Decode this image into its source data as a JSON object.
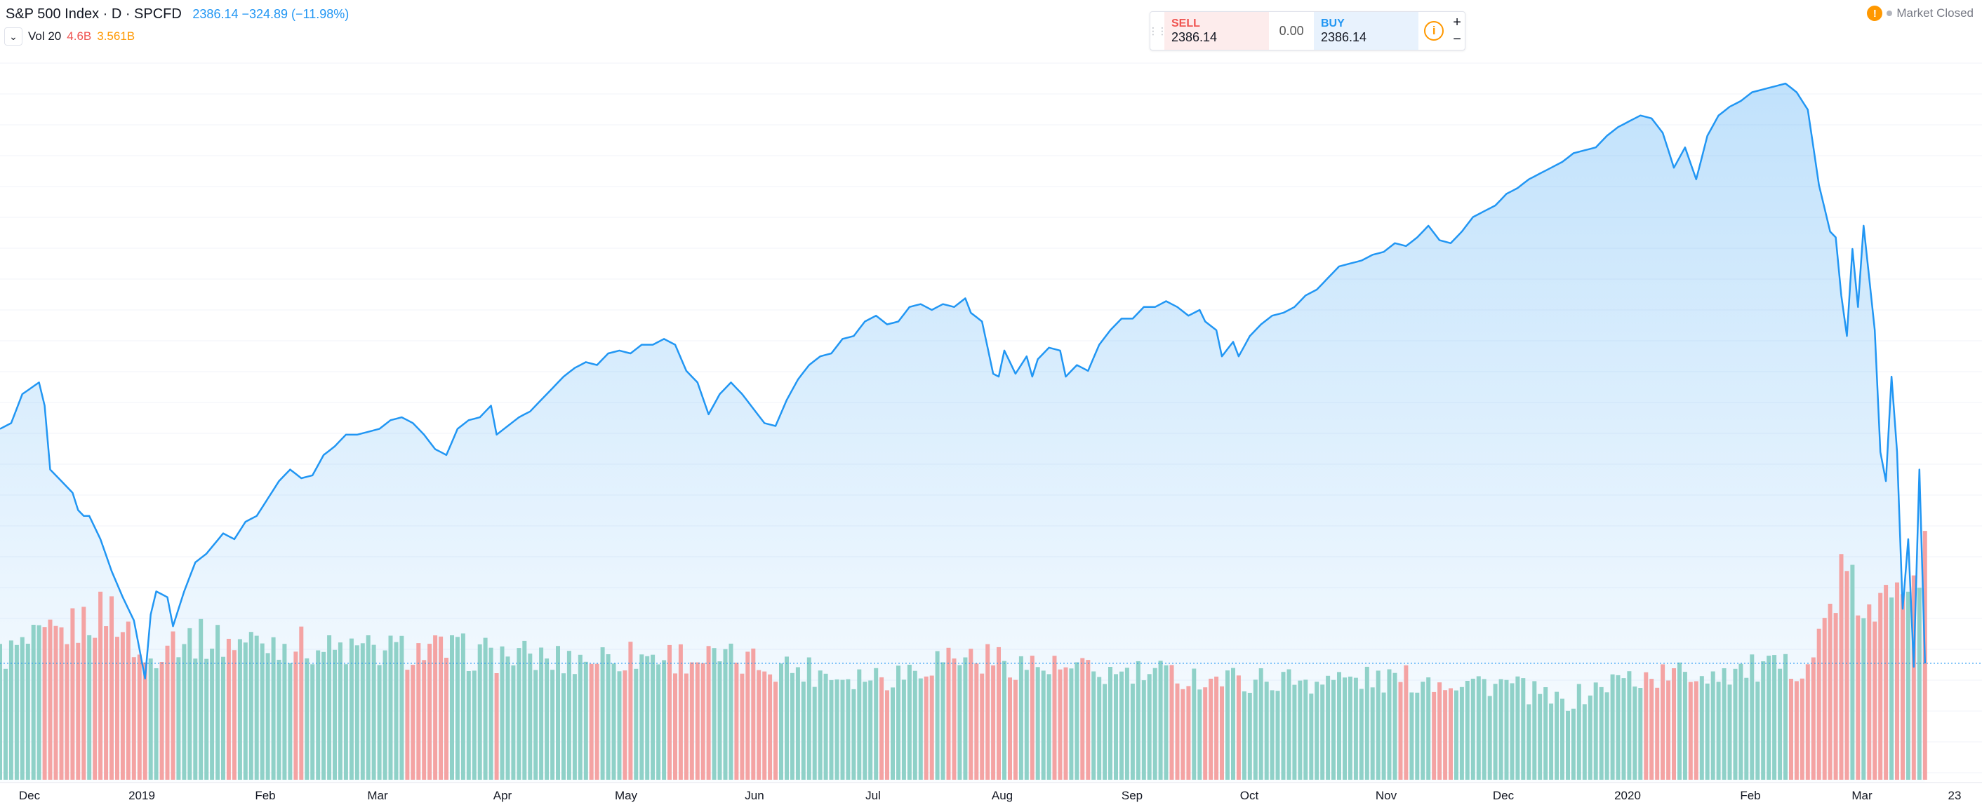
{
  "legend": {
    "title": "S&P 500 Index · D · SPCFD",
    "values": "2386.14 −324.89 (−11.98%)"
  },
  "volume_legend": {
    "label": "Vol 20",
    "value1": "4.6B",
    "value2": "3.561B"
  },
  "trade_panel": {
    "sell_label": "SELL",
    "sell_price": "2386.14",
    "spread": "0.00",
    "buy_label": "BUY",
    "buy_price": "2386.14",
    "info_glyph": "i",
    "plus": "+",
    "minus": "−"
  },
  "market_status": {
    "warn_glyph": "!",
    "text": "Market Closed"
  },
  "colors": {
    "line": "#2196f3",
    "volume_up": "#8fd1c8",
    "volume_down": "#f4a3a3",
    "grid": "#f0f3fa",
    "last_price": "#2196f3"
  },
  "chart_data": {
    "type": "area",
    "series_name": "S&P 500 Index",
    "price_ylim": [
      2000,
      3500
    ],
    "last_close": 2386.14,
    "x_tick_labels": [
      "Dec",
      "2019",
      "Feb",
      "Mar",
      "Apr",
      "May",
      "Jun",
      "Jul",
      "Aug",
      "Sep",
      "Oct",
      "Nov",
      "Dec",
      "2020",
      "Feb",
      "Mar",
      "23"
    ],
    "price_keypoints": [
      [
        0,
        2790
      ],
      [
        2,
        2800
      ],
      [
        4,
        2850
      ],
      [
        7,
        2870
      ],
      [
        8,
        2830
      ],
      [
        9,
        2720
      ],
      [
        11,
        2700
      ],
      [
        13,
        2680
      ],
      [
        14,
        2650
      ],
      [
        15,
        2640
      ],
      [
        16,
        2640
      ],
      [
        18,
        2600
      ],
      [
        20,
        2545
      ],
      [
        22,
        2500
      ],
      [
        24,
        2460
      ],
      [
        25,
        2410
      ],
      [
        26,
        2360
      ],
      [
        27,
        2470
      ],
      [
        28,
        2510
      ],
      [
        30,
        2500
      ],
      [
        31,
        2450
      ],
      [
        33,
        2510
      ],
      [
        35,
        2560
      ],
      [
        37,
        2575
      ],
      [
        40,
        2610
      ],
      [
        42,
        2600
      ],
      [
        44,
        2630
      ],
      [
        46,
        2640
      ],
      [
        48,
        2670
      ],
      [
        50,
        2700
      ],
      [
        52,
        2720
      ],
      [
        54,
        2705
      ],
      [
        56,
        2710
      ],
      [
        58,
        2745
      ],
      [
        60,
        2760
      ],
      [
        62,
        2780
      ],
      [
        64,
        2780
      ],
      [
        66,
        2785
      ],
      [
        68,
        2790
      ],
      [
        70,
        2805
      ],
      [
        72,
        2810
      ],
      [
        74,
        2800
      ],
      [
        76,
        2780
      ],
      [
        78,
        2755
      ],
      [
        80,
        2745
      ],
      [
        82,
        2790
      ],
      [
        84,
        2805
      ],
      [
        86,
        2810
      ],
      [
        88,
        2830
      ],
      [
        89,
        2780
      ],
      [
        91,
        2795
      ],
      [
        93,
        2810
      ],
      [
        95,
        2820
      ],
      [
        97,
        2840
      ],
      [
        99,
        2860
      ],
      [
        101,
        2880
      ],
      [
        103,
        2895
      ],
      [
        105,
        2905
      ],
      [
        107,
        2900
      ],
      [
        109,
        2920
      ],
      [
        111,
        2925
      ],
      [
        113,
        2920
      ],
      [
        115,
        2935
      ],
      [
        117,
        2935
      ],
      [
        119,
        2945
      ],
      [
        121,
        2935
      ],
      [
        123,
        2890
      ],
      [
        125,
        2870
      ],
      [
        127,
        2815
      ],
      [
        129,
        2850
      ],
      [
        131,
        2870
      ],
      [
        133,
        2850
      ],
      [
        135,
        2825
      ],
      [
        137,
        2800
      ],
      [
        139,
        2795
      ],
      [
        141,
        2840
      ],
      [
        143,
        2875
      ],
      [
        145,
        2900
      ],
      [
        147,
        2915
      ],
      [
        149,
        2920
      ],
      [
        151,
        2945
      ],
      [
        153,
        2950
      ],
      [
        155,
        2975
      ],
      [
        157,
        2985
      ],
      [
        159,
        2970
      ],
      [
        161,
        2975
      ],
      [
        163,
        3000
      ],
      [
        165,
        3005
      ],
      [
        167,
        2995
      ],
      [
        169,
        3005
      ],
      [
        171,
        3000
      ],
      [
        173,
        3015
      ],
      [
        174,
        2990
      ],
      [
        176,
        2975
      ],
      [
        178,
        2885
      ],
      [
        179,
        2880
      ],
      [
        180,
        2925
      ],
      [
        182,
        2885
      ],
      [
        184,
        2915
      ],
      [
        185,
        2880
      ],
      [
        186,
        2910
      ],
      [
        188,
        2930
      ],
      [
        190,
        2925
      ],
      [
        191,
        2880
      ],
      [
        193,
        2900
      ],
      [
        195,
        2890
      ],
      [
        197,
        2935
      ],
      [
        199,
        2960
      ],
      [
        201,
        2980
      ],
      [
        203,
        2980
      ],
      [
        205,
        3000
      ],
      [
        207,
        3000
      ],
      [
        209,
        3010
      ],
      [
        211,
        3000
      ],
      [
        213,
        2985
      ],
      [
        215,
        2995
      ],
      [
        216,
        2975
      ],
      [
        218,
        2960
      ],
      [
        219,
        2915
      ],
      [
        221,
        2940
      ],
      [
        222,
        2915
      ],
      [
        224,
        2950
      ],
      [
        226,
        2970
      ],
      [
        228,
        2985
      ],
      [
        230,
        2990
      ],
      [
        232,
        3000
      ],
      [
        234,
        3020
      ],
      [
        236,
        3030
      ],
      [
        238,
        3050
      ],
      [
        240,
        3070
      ],
      [
        242,
        3075
      ],
      [
        244,
        3080
      ],
      [
        246,
        3090
      ],
      [
        248,
        3095
      ],
      [
        250,
        3110
      ],
      [
        252,
        3105
      ],
      [
        254,
        3120
      ],
      [
        256,
        3140
      ],
      [
        258,
        3115
      ],
      [
        260,
        3110
      ],
      [
        262,
        3130
      ],
      [
        264,
        3155
      ],
      [
        266,
        3165
      ],
      [
        268,
        3175
      ],
      [
        270,
        3195
      ],
      [
        272,
        3205
      ],
      [
        274,
        3220
      ],
      [
        276,
        3230
      ],
      [
        278,
        3240
      ],
      [
        280,
        3250
      ],
      [
        282,
        3265
      ],
      [
        284,
        3270
      ],
      [
        286,
        3275
      ],
      [
        288,
        3295
      ],
      [
        290,
        3310
      ],
      [
        292,
        3320
      ],
      [
        294,
        3330
      ],
      [
        296,
        3325
      ],
      [
        298,
        3300
      ],
      [
        300,
        3240
      ],
      [
        302,
        3275
      ],
      [
        304,
        3220
      ],
      [
        306,
        3295
      ],
      [
        308,
        3330
      ],
      [
        310,
        3345
      ],
      [
        312,
        3355
      ],
      [
        314,
        3370
      ],
      [
        316,
        3375
      ],
      [
        318,
        3380
      ],
      [
        320,
        3385
      ],
      [
        322,
        3370
      ],
      [
        324,
        3340
      ],
      [
        326,
        3210
      ],
      [
        328,
        3130
      ],
      [
        329,
        3120
      ],
      [
        330,
        3020
      ],
      [
        331,
        2950
      ],
      [
        332,
        3100
      ],
      [
        333,
        3000
      ],
      [
        334,
        3140
      ],
      [
        335,
        3050
      ],
      [
        336,
        2960
      ],
      [
        337,
        2750
      ],
      [
        338,
        2700
      ],
      [
        339,
        2880
      ],
      [
        340,
        2750
      ],
      [
        341,
        2480
      ],
      [
        342,
        2600
      ],
      [
        343,
        2380
      ],
      [
        344,
        2720
      ],
      [
        345,
        2386
      ]
    ],
    "volume_ylim": [
      0,
      6.0
    ],
    "volume_keypoints": [
      [
        0,
        2.6
      ],
      [
        10,
        3.0
      ],
      [
        20,
        3.6
      ],
      [
        26,
        2.4
      ],
      [
        30,
        3.0
      ],
      [
        40,
        2.9
      ],
      [
        50,
        2.9
      ],
      [
        60,
        2.7
      ],
      [
        70,
        2.7
      ],
      [
        80,
        2.7
      ],
      [
        90,
        2.6
      ],
      [
        100,
        2.5
      ],
      [
        110,
        2.6
      ],
      [
        120,
        2.6
      ],
      [
        130,
        2.5
      ],
      [
        140,
        2.4
      ],
      [
        150,
        2.2
      ],
      [
        160,
        2.2
      ],
      [
        170,
        2.6
      ],
      [
        180,
        2.5
      ],
      [
        190,
        2.3
      ],
      [
        200,
        2.2
      ],
      [
        210,
        2.2
      ],
      [
        220,
        2.1
      ],
      [
        230,
        2.1
      ],
      [
        240,
        2.1
      ],
      [
        250,
        2.1
      ],
      [
        260,
        2.1
      ],
      [
        270,
        2.0
      ],
      [
        280,
        1.6
      ],
      [
        290,
        2.1
      ],
      [
        300,
        2.2
      ],
      [
        310,
        2.3
      ],
      [
        320,
        2.3
      ],
      [
        325,
        2.6
      ],
      [
        330,
        4.3
      ],
      [
        336,
        3.2
      ],
      [
        340,
        4.5
      ],
      [
        345,
        4.6
      ]
    ]
  }
}
